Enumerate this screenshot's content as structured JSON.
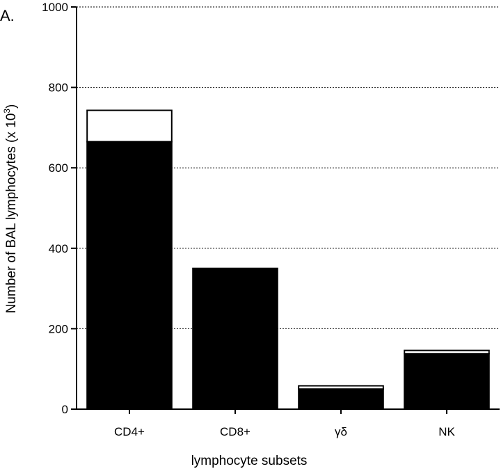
{
  "panel_label": "A.",
  "chart_data": {
    "type": "bar",
    "stacked": true,
    "categories": [
      "CD4+",
      "CD8+",
      "γδ",
      "NK"
    ],
    "series": [
      {
        "values": [
          665,
          350,
          50,
          138
        ],
        "color": "#000000"
      },
      {
        "values": [
          78,
          0,
          8,
          8
        ],
        "color": "#ffffff"
      }
    ],
    "totals": [
      743,
      350,
      58,
      146
    ],
    "xlabel": "lymphocyte subsets",
    "ylabel": "Number of BAL lymphocytes (x 10",
    "ylabel_superscript": "3",
    "ylabel_suffix": ")",
    "ylim": [
      0,
      1000
    ],
    "yticks": [
      0,
      200,
      400,
      600,
      800,
      1000
    ],
    "grid": true
  }
}
